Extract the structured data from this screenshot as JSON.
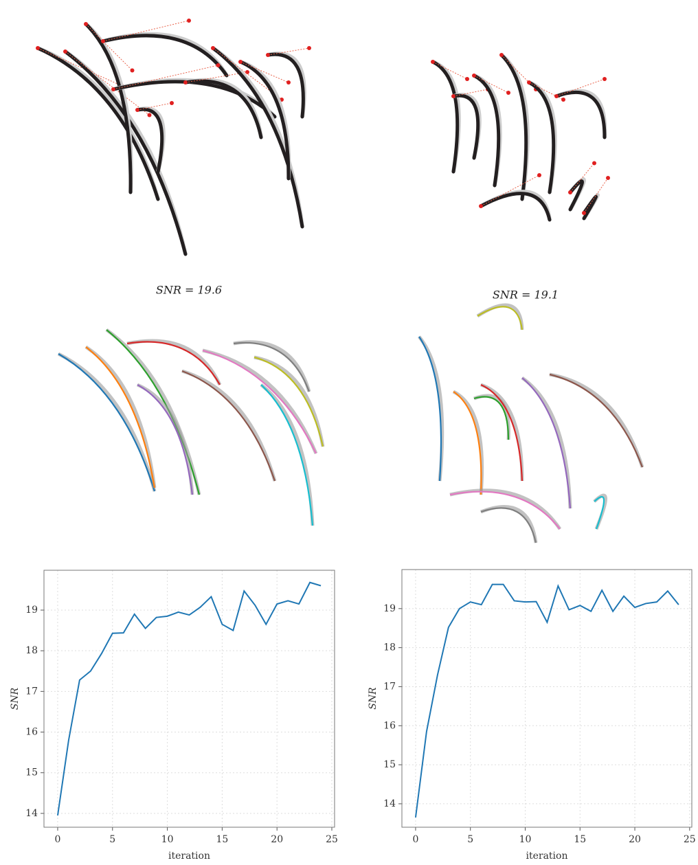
{
  "chart_data": [
    {
      "type": "line",
      "x": [
        0,
        1,
        2,
        3,
        4,
        5,
        6,
        7,
        8,
        9,
        10,
        11,
        12,
        13,
        14,
        15,
        16,
        17,
        18,
        19,
        20,
        21,
        22,
        23,
        24
      ],
      "series": [
        {
          "color": "#1f77b4",
          "values": [
            13.95,
            15.8,
            17.28,
            17.5,
            17.93,
            18.43,
            18.44,
            18.9,
            18.55,
            18.82,
            18.85,
            18.95,
            18.88,
            19.07,
            19.33,
            18.65,
            18.5,
            19.47,
            19.12,
            18.65,
            19.15,
            19.23,
            19.15,
            19.68,
            19.6
          ]
        }
      ],
      "xlabel": "iteration",
      "ylabel": "SNR",
      "xlim": [
        -1.25,
        25.25
      ],
      "ylim": [
        13.66,
        19.98
      ],
      "xticks": [
        0,
        5,
        10,
        15,
        20,
        25
      ],
      "yticks": [
        14,
        15,
        16,
        17,
        18,
        19
      ],
      "grid": true
    },
    {
      "type": "line",
      "x": [
        0,
        1,
        2,
        3,
        4,
        5,
        6,
        7,
        8,
        9,
        10,
        11,
        12,
        13,
        14,
        15,
        16,
        17,
        18,
        19,
        20,
        21,
        22,
        23,
        24
      ],
      "series": [
        {
          "color": "#1f77b4",
          "values": [
            13.65,
            15.85,
            17.3,
            18.52,
            19.0,
            19.17,
            19.1,
            19.62,
            19.62,
            19.2,
            19.17,
            19.18,
            18.65,
            19.58,
            18.97,
            19.08,
            18.93,
            19.47,
            18.93,
            19.32,
            19.03,
            19.13,
            19.17,
            19.45,
            19.1
          ]
        }
      ],
      "xlabel": "iteration",
      "ylabel": "SNR",
      "xlim": [
        -1.25,
        25.2
      ],
      "ylim": [
        13.4,
        20.0
      ],
      "xticks": [
        0,
        5,
        10,
        15,
        20,
        25
      ],
      "yticks": [
        14,
        15,
        16,
        17,
        18,
        19
      ],
      "grid": true
    }
  ],
  "panels": [
    {
      "label": "SNR = 19.6"
    },
    {
      "label": "SNR = 19.1"
    }
  ]
}
